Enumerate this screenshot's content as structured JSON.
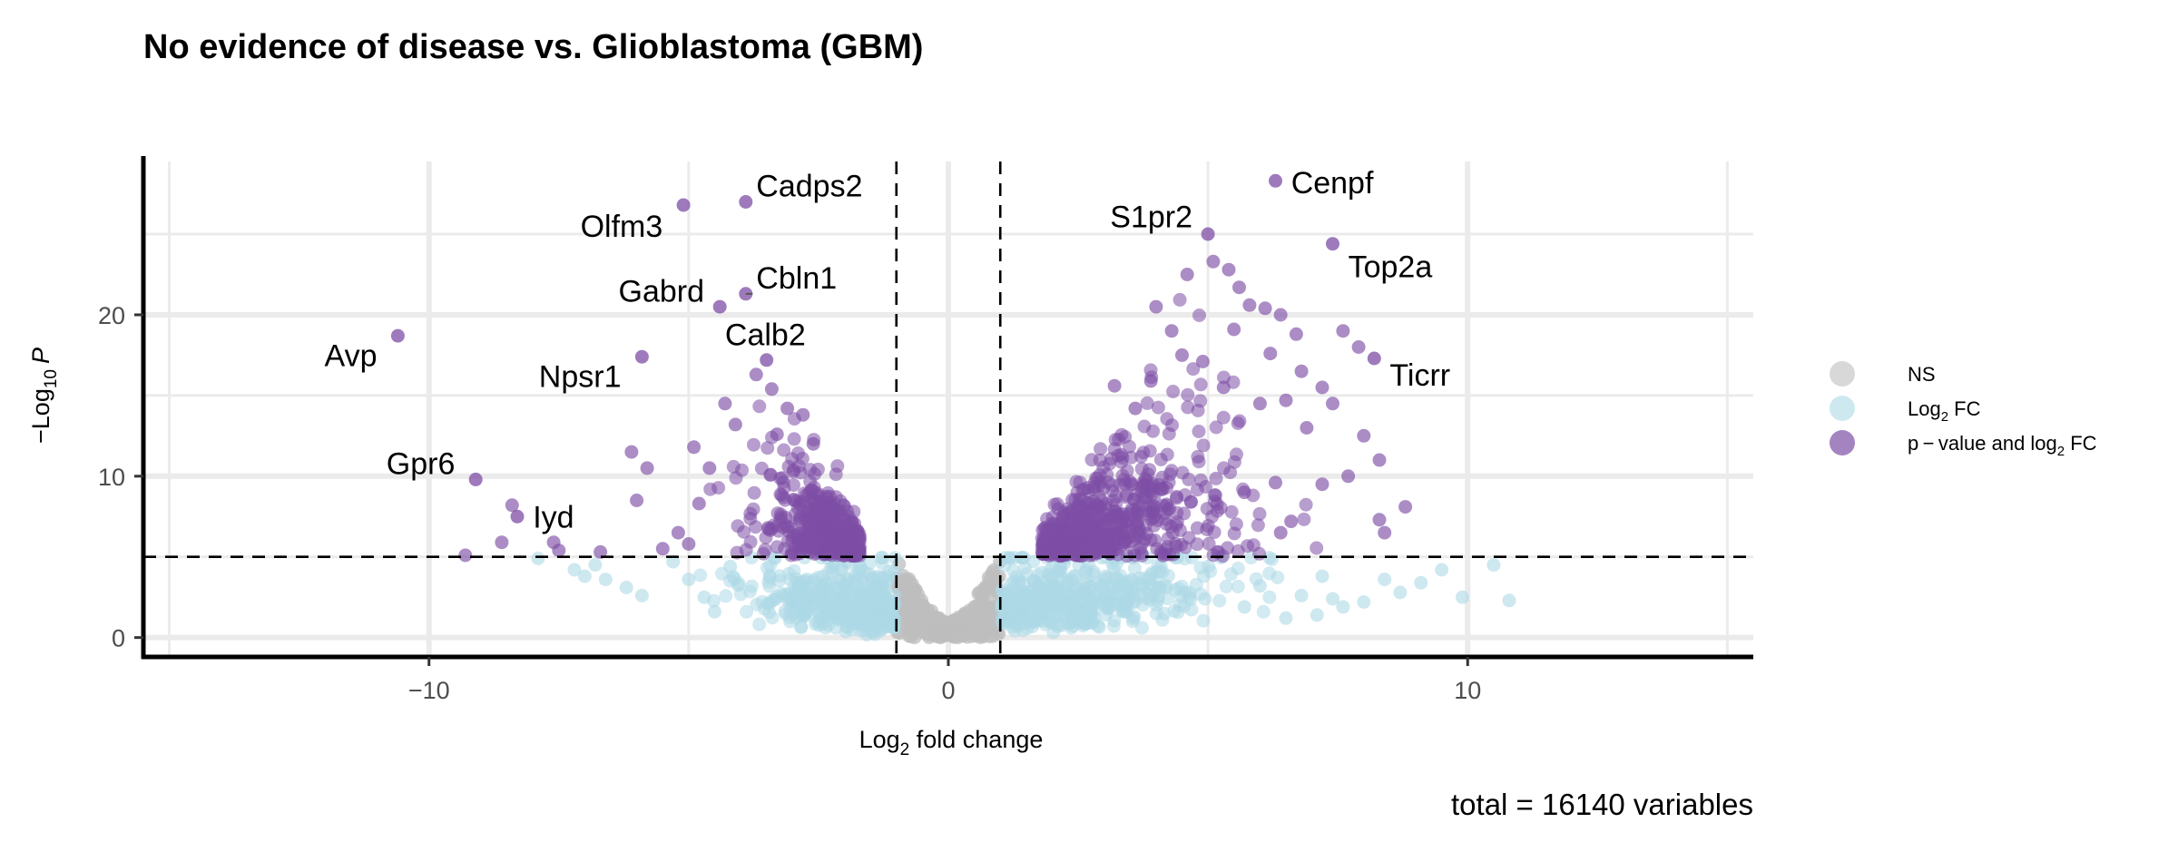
{
  "chart_data": {
    "type": "scatter",
    "title": "No evidence of disease vs. Glioblastoma (GBM)",
    "xlabel": {
      "main": "Log",
      "sub": "2",
      "rest": " fold change"
    },
    "ylabel": {
      "pre": "−Log",
      "sub": "10",
      "italic": "P"
    },
    "caption": "total = 16140 variables",
    "xlim": [
      -15.5,
      15.5
    ],
    "ylim": [
      -1.2,
      29.5
    ],
    "x_ticks": [
      -10,
      0,
      10
    ],
    "x_tick_labels": [
      "−10",
      "0",
      "10"
    ],
    "y_ticks": [
      0,
      10,
      20
    ],
    "y_tick_labels": [
      "0",
      "10",
      "20"
    ],
    "grid": true,
    "fc_cutoff": 1,
    "p_cutoff": 5,
    "total_variables": 16140,
    "legend": {
      "position": "right",
      "entries": [
        {
          "key": "ns",
          "label": "NS"
        },
        {
          "key": "fc",
          "label": "Log",
          "sub": "2",
          "rest": " FC"
        },
        {
          "key": "both",
          "label": "p − value and log",
          "sub": "2",
          "rest": " FC"
        }
      ]
    },
    "colors": {
      "ns": "#bebebe",
      "fc": "#add8e6",
      "both": "#7e4ea6",
      "grid": "#ebebeb",
      "axis": "#000000"
    },
    "labeled_points": [
      {
        "gene": "Cadps2",
        "x": -3.9,
        "y": 27.0,
        "label_x": -3.7,
        "label_y": 28.0,
        "anchor": "start"
      },
      {
        "gene": "Olfm3",
        "x": -5.1,
        "y": 26.8,
        "label_x": -5.5,
        "label_y": 25.5,
        "anchor": "end"
      },
      {
        "gene": "Gabrd",
        "x": -4.4,
        "y": 20.5,
        "label_x": -4.7,
        "label_y": 21.5,
        "anchor": "end"
      },
      {
        "gene": "Cbln1",
        "x": -3.9,
        "y": 21.3,
        "label_x": -3.7,
        "label_y": 22.3,
        "anchor": "start"
      },
      {
        "gene": "Calb2",
        "x": -3.5,
        "y": 17.2,
        "label_x": -4.3,
        "label_y": 18.8,
        "anchor": "start"
      },
      {
        "gene": "Npsr1",
        "x": -5.9,
        "y": 17.4,
        "label_x": -6.3,
        "label_y": 16.2,
        "anchor": "end"
      },
      {
        "gene": "Avp",
        "x": -10.6,
        "y": 18.7,
        "label_x": -11.0,
        "label_y": 17.5,
        "anchor": "end"
      },
      {
        "gene": "Gpr6",
        "x": -9.1,
        "y": 9.8,
        "label_x": -9.5,
        "label_y": 10.8,
        "anchor": "end"
      },
      {
        "gene": "Iyd",
        "x": -8.3,
        "y": 7.5,
        "label_x": -8.0,
        "label_y": 7.5,
        "anchor": "start"
      },
      {
        "gene": "Cenpf",
        "x": 6.3,
        "y": 28.3,
        "label_x": 6.6,
        "label_y": 28.2,
        "anchor": "start"
      },
      {
        "gene": "S1pr2",
        "x": 5.0,
        "y": 25.0,
        "label_x": 4.7,
        "label_y": 26.1,
        "anchor": "end"
      },
      {
        "gene": "Top2a",
        "x": 7.4,
        "y": 24.4,
        "label_x": 7.7,
        "label_y": 23.0,
        "anchor": "start"
      },
      {
        "gene": "Ticrr",
        "x": 8.2,
        "y": 17.3,
        "label_x": 8.5,
        "label_y": 16.3,
        "anchor": "start"
      }
    ],
    "extra_significant_points": [
      [
        -6.1,
        11.5
      ],
      [
        -5.8,
        10.5
      ],
      [
        -6.0,
        8.5
      ],
      [
        -5.5,
        5.5
      ],
      [
        -5.2,
        6.5
      ],
      [
        -4.9,
        11.8
      ],
      [
        -4.6,
        10.5
      ],
      [
        -4.3,
        14.5
      ],
      [
        -4.1,
        13.2
      ],
      [
        -3.7,
        16.3
      ],
      [
        -3.4,
        15.4
      ],
      [
        -3.1,
        14.2
      ],
      [
        -3.3,
        12.6
      ],
      [
        -2.8,
        13.8
      ],
      [
        -2.6,
        12.0
      ],
      [
        -4.8,
        8.3
      ],
      [
        -5.0,
        5.8
      ],
      [
        -6.7,
        5.3
      ],
      [
        -7.6,
        5.9
      ],
      [
        -7.5,
        5.4
      ],
      [
        -8.4,
        8.2
      ],
      [
        -8.6,
        5.9
      ],
      [
        -9.3,
        5.1
      ],
      [
        4.0,
        20.5
      ],
      [
        4.3,
        19.0
      ],
      [
        4.6,
        22.5
      ],
      [
        5.1,
        23.3
      ],
      [
        5.4,
        22.8
      ],
      [
        5.6,
        21.7
      ],
      [
        5.8,
        20.6
      ],
      [
        5.5,
        19.1
      ],
      [
        6.1,
        20.4
      ],
      [
        6.4,
        20.0
      ],
      [
        6.7,
        18.8
      ],
      [
        6.8,
        16.5
      ],
      [
        7.2,
        15.5
      ],
      [
        7.6,
        19.0
      ],
      [
        7.9,
        18.0
      ],
      [
        8.0,
        12.5
      ],
      [
        8.3,
        11.0
      ],
      [
        7.4,
        14.5
      ],
      [
        6.9,
        13.0
      ],
      [
        6.5,
        14.7
      ],
      [
        7.7,
        10.0
      ],
      [
        7.2,
        9.5
      ],
      [
        8.8,
        8.1
      ],
      [
        8.4,
        6.5
      ],
      [
        8.3,
        7.3
      ],
      [
        6.4,
        6.5
      ],
      [
        6.6,
        7.2
      ],
      [
        4.9,
        17.1
      ],
      [
        5.3,
        15.5
      ],
      [
        4.5,
        17.5
      ],
      [
        6.2,
        17.6
      ],
      [
        6.0,
        14.5
      ],
      [
        5.7,
        9.0
      ],
      [
        6.3,
        9.6
      ],
      [
        3.2,
        15.6
      ],
      [
        3.6,
        14.2
      ],
      [
        3.9,
        15.9
      ]
    ],
    "extra_fc_points": [
      [
        -7.9,
        4.9
      ],
      [
        -7.2,
        4.2
      ],
      [
        -7.0,
        3.8
      ],
      [
        -6.6,
        3.6
      ],
      [
        -6.2,
        3.1
      ],
      [
        -5.9,
        2.6
      ],
      [
        -5.3,
        4.7
      ],
      [
        -5.0,
        3.6
      ],
      [
        -4.7,
        2.5
      ],
      [
        -4.5,
        1.6
      ],
      [
        -4.2,
        4.4
      ],
      [
        -6.8,
        4.5
      ],
      [
        7.1,
        1.4
      ],
      [
        7.6,
        1.9
      ],
      [
        8.0,
        2.2
      ],
      [
        7.4,
        2.4
      ],
      [
        8.4,
        3.6
      ],
      [
        9.1,
        3.4
      ],
      [
        9.5,
        4.2
      ],
      [
        9.9,
        2.5
      ],
      [
        10.5,
        4.5
      ],
      [
        10.8,
        2.3
      ],
      [
        8.7,
        2.8
      ],
      [
        6.5,
        1.2
      ],
      [
        6.0,
        3.2
      ],
      [
        7.2,
        3.8
      ],
      [
        6.8,
        2.6
      ],
      [
        5.7,
        1.9
      ]
    ]
  }
}
